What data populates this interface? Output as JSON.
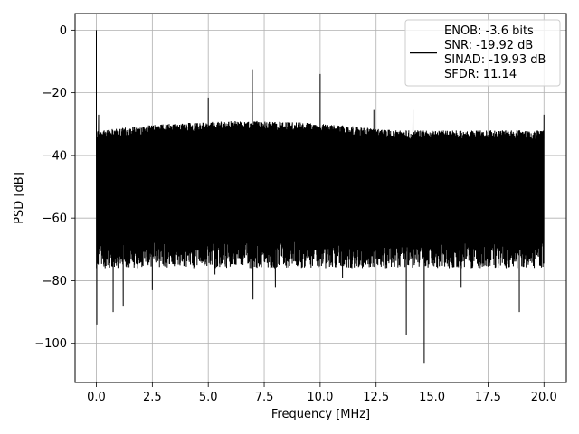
{
  "chart_data": {
    "type": "line",
    "title": "",
    "xlabel": "Frequency [MHz]",
    "ylabel": "PSD [dB]",
    "xlim": [
      -0.95,
      21.0
    ],
    "ylim": [
      -112.5,
      5.3
    ],
    "xticks": [
      0.0,
      2.5,
      5.0,
      7.5,
      10.0,
      12.5,
      15.0,
      17.5,
      20.0
    ],
    "xtick_labels": [
      "0.0",
      "2.5",
      "5.0",
      "7.5",
      "10.0",
      "12.5",
      "15.0",
      "17.5",
      "20.0"
    ],
    "yticks": [
      0,
      -20,
      -40,
      -60,
      -80,
      -100
    ],
    "ytick_labels": [
      "0",
      "−20",
      "−40",
      "−60",
      "−80",
      "−100"
    ],
    "grid": true,
    "legend_position": "top-right",
    "legend_entries": [
      "ENOB: -3.6 bits",
      "SNR: -19.92 dB",
      "SINAD: -19.93 dB",
      "SFDR: 11.14"
    ],
    "series_color": "#000000",
    "x_range": [
      0.0,
      20.0
    ],
    "noise_band": {
      "upper_start": -32,
      "upper_end": -29,
      "lower_typical": -67
    },
    "spikes": [
      {
        "x": 0.0,
        "y": 0.0
      },
      {
        "x": 0.02,
        "y": -94
      },
      {
        "x": 0.1,
        "y": -27
      },
      {
        "x": 0.75,
        "y": -90
      },
      {
        "x": 1.2,
        "y": -88
      },
      {
        "x": 2.5,
        "y": -83
      },
      {
        "x": 5.0,
        "y": -21.5
      },
      {
        "x": 5.3,
        "y": -78
      },
      {
        "x": 6.97,
        "y": -12.5
      },
      {
        "x": 7.0,
        "y": -86
      },
      {
        "x": 8.0,
        "y": -82
      },
      {
        "x": 10.0,
        "y": -14
      },
      {
        "x": 11.0,
        "y": -79
      },
      {
        "x": 12.4,
        "y": -25.5
      },
      {
        "x": 13.85,
        "y": -97.5
      },
      {
        "x": 14.15,
        "y": -25.5
      },
      {
        "x": 14.65,
        "y": -106.5
      },
      {
        "x": 16.3,
        "y": -82
      },
      {
        "x": 18.9,
        "y": -90
      },
      {
        "x": 20.0,
        "y": -27
      }
    ]
  }
}
